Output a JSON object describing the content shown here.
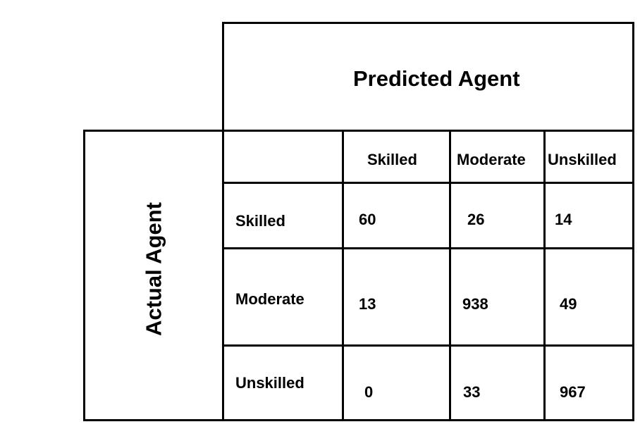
{
  "chart_data": {
    "type": "table",
    "title": "",
    "column_header": "Predicted Agent",
    "row_header": "Actual Agent",
    "columns": [
      "Skilled",
      "Moderate",
      "Unskilled"
    ],
    "rows": [
      "Skilled",
      "Moderate",
      "Unskilled"
    ],
    "values": [
      [
        "60",
        "26",
        "14"
      ],
      [
        "13",
        "938",
        "49"
      ],
      [
        "0",
        "33",
        "967"
      ]
    ]
  }
}
